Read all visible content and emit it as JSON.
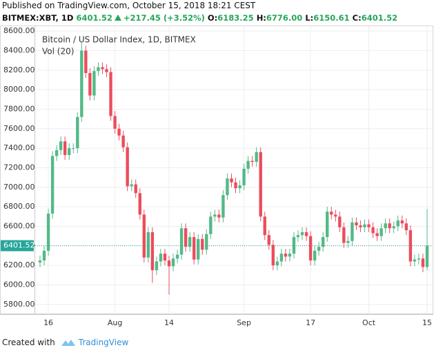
{
  "header": {
    "published": "Published on TradingView.com, October 15, 2018 18:21 CEST",
    "symbol": "BITMEX:XBT, 1D",
    "last": "6401.52",
    "change": "+217.45 (+3.52%)",
    "o_label": "O:",
    "o": "6183.25",
    "h_label": "H:",
    "h": "6776.00",
    "l_label": "L:",
    "l": "6150.61",
    "c_label": "C:",
    "c": "6401.52"
  },
  "footer": {
    "created": "Created with",
    "brand": "TradingView"
  },
  "chart_data": {
    "type": "candlestick",
    "title": "Bitcoin / US Dollar Index, 1D, BITMEX",
    "subtitle": "Vol (20)",
    "up_color": "#53b987",
    "down_color": "#eb4d5c",
    "grid": true,
    "categories": [
      "2018-07-14",
      "2018-07-15",
      "2018-07-16",
      "2018-07-17",
      "2018-07-18",
      "2018-07-19",
      "2018-07-20",
      "2018-07-21",
      "2018-07-22",
      "2018-07-23",
      "2018-07-24",
      "2018-07-25",
      "2018-07-26",
      "2018-07-27",
      "2018-07-28",
      "2018-07-29",
      "2018-07-30",
      "2018-07-31",
      "2018-08-01",
      "2018-08-02",
      "2018-08-03",
      "2018-08-04",
      "2018-08-05",
      "2018-08-06",
      "2018-08-07",
      "2018-08-08",
      "2018-08-09",
      "2018-08-10",
      "2018-08-11",
      "2018-08-12",
      "2018-08-13",
      "2018-08-14",
      "2018-08-15",
      "2018-08-16",
      "2018-08-17",
      "2018-08-18",
      "2018-08-19",
      "2018-08-20",
      "2018-08-21",
      "2018-08-22",
      "2018-08-23",
      "2018-08-24",
      "2018-08-25",
      "2018-08-26",
      "2018-08-27",
      "2018-08-28",
      "2018-08-29",
      "2018-08-30",
      "2018-08-31",
      "2018-09-01",
      "2018-09-02",
      "2018-09-03",
      "2018-09-04",
      "2018-09-05",
      "2018-09-06",
      "2018-09-07",
      "2018-09-08",
      "2018-09-09",
      "2018-09-10",
      "2018-09-11",
      "2018-09-12",
      "2018-09-13",
      "2018-09-14",
      "2018-09-15",
      "2018-09-16",
      "2018-09-17",
      "2018-09-18",
      "2018-09-19",
      "2018-09-20",
      "2018-09-21",
      "2018-09-22",
      "2018-09-23",
      "2018-09-24",
      "2018-09-25",
      "2018-09-26",
      "2018-09-27",
      "2018-09-28",
      "2018-09-29",
      "2018-09-30",
      "2018-10-01",
      "2018-10-02",
      "2018-10-03",
      "2018-10-04",
      "2018-10-05",
      "2018-10-06",
      "2018-10-07",
      "2018-10-08",
      "2018-10-09",
      "2018-10-10",
      "2018-10-11",
      "2018-10-12",
      "2018-10-13",
      "2018-10-14",
      "2018-10-15"
    ],
    "open": [
      6230,
      6250,
      6350,
      6730,
      7320,
      7380,
      7470,
      7330,
      7400,
      7400,
      7720,
      8400,
      8170,
      7940,
      8190,
      8230,
      8210,
      8180,
      7730,
      7600,
      7530,
      7410,
      7010,
      7030,
      6940,
      6720,
      6280,
      6540,
      6150,
      6240,
      6320,
      6250,
      6190,
      6270,
      6310,
      6580,
      6390,
      6490,
      6260,
      6470,
      6360,
      6520,
      6700,
      6720,
      6690,
      6920,
      7090,
      7050,
      6990,
      7020,
      7190,
      7270,
      7260,
      7360,
      6700,
      6510,
      6410,
      6200,
      6240,
      6320,
      6290,
      6320,
      6490,
      6510,
      6540,
      6500,
      6250,
      6350,
      6390,
      6490,
      6750,
      6720,
      6700,
      6590,
      6430,
      6450,
      6640,
      6610,
      6590,
      6620,
      6590,
      6530,
      6500,
      6580,
      6630,
      6580,
      6600,
      6660,
      6630,
      6560,
      6240,
      6260,
      6270,
      6183.25
    ],
    "high": [
      6300,
      6400,
      6780,
      7370,
      7430,
      7520,
      7520,
      7450,
      7450,
      7770,
      8480,
      8450,
      8220,
      8240,
      8280,
      8280,
      8260,
      8230,
      7780,
      7650,
      7580,
      7460,
      7080,
      7080,
      6990,
      6770,
      6590,
      6590,
      6290,
      6370,
      6370,
      6300,
      6320,
      6360,
      6630,
      6630,
      6540,
      6540,
      6520,
      6520,
      6570,
      6750,
      6770,
      6770,
      6970,
      7140,
      7140,
      7100,
      7070,
      7240,
      7320,
      7320,
      7410,
      7410,
      6750,
      6560,
      6460,
      6290,
      6370,
      6370,
      6370,
      6540,
      6560,
      6590,
      6590,
      6550,
      6400,
      6440,
      6540,
      6800,
      6800,
      6770,
      6750,
      6640,
      6500,
      6690,
      6690,
      6660,
      6670,
      6670,
      6640,
      6580,
      6630,
      6680,
      6680,
      6650,
      6710,
      6710,
      6680,
      6610,
      6310,
      6320,
      6320,
      6776
    ],
    "low": [
      6180,
      6200,
      6300,
      6680,
      7270,
      7330,
      7280,
      7280,
      7350,
      7350,
      7670,
      8120,
      7890,
      7890,
      8140,
      8160,
      8130,
      7680,
      7550,
      7480,
      7360,
      6960,
      6960,
      6890,
      6670,
      6230,
      6230,
      6020,
      6100,
      6190,
      6200,
      5900,
      6140,
      6220,
      6260,
      6340,
      6340,
      6210,
      6210,
      6310,
      6310,
      6470,
      6650,
      6640,
      6640,
      6870,
      7000,
      6940,
      6940,
      6970,
      7140,
      7210,
      7210,
      6650,
      6460,
      6360,
      6150,
      6150,
      6190,
      6240,
      6240,
      6270,
      6440,
      6460,
      6450,
      6200,
      6200,
      6300,
      6340,
      6440,
      6670,
      6650,
      6540,
      6380,
      6380,
      6400,
      6560,
      6540,
      6540,
      6540,
      6480,
      6450,
      6450,
      6530,
      6530,
      6530,
      6550,
      6580,
      6510,
      6190,
      6190,
      6210,
      6130,
      6150.61
    ],
    "close": [
      6250,
      6350,
      6730,
      7320,
      7380,
      7470,
      7330,
      7400,
      7400,
      7720,
      8400,
      8170,
      7940,
      8190,
      8230,
      8210,
      8180,
      7730,
      7600,
      7530,
      7410,
      7010,
      7030,
      6940,
      6720,
      6280,
      6540,
      6150,
      6240,
      6320,
      6250,
      6190,
      6270,
      6310,
      6580,
      6390,
      6490,
      6260,
      6470,
      6360,
      6520,
      6700,
      6720,
      6690,
      6920,
      7090,
      7050,
      6990,
      7020,
      7190,
      7270,
      7260,
      7360,
      6700,
      6510,
      6410,
      6200,
      6240,
      6320,
      6290,
      6320,
      6490,
      6510,
      6540,
      6500,
      6250,
      6350,
      6390,
      6490,
      6750,
      6720,
      6700,
      6590,
      6430,
      6450,
      6640,
      6610,
      6590,
      6620,
      6590,
      6530,
      6500,
      6580,
      6630,
      6580,
      6600,
      6660,
      6630,
      6560,
      6240,
      6260,
      6270,
      6183.25,
      6401.52
    ],
    "ylim": [
      5700,
      8650
    ],
    "yticks": [
      {
        "value": 5800,
        "label": "5800.00"
      },
      {
        "value": 6000,
        "label": "6000.00"
      },
      {
        "value": 6200,
        "label": "6200.00"
      },
      {
        "value": 6400,
        "label": "6400.00"
      },
      {
        "value": 6600,
        "label": "6600.00"
      },
      {
        "value": 6800,
        "label": "6800.00"
      },
      {
        "value": 7000,
        "label": "7000.00"
      },
      {
        "value": 7200,
        "label": "7200.00"
      },
      {
        "value": 7400,
        "label": "7400.00"
      },
      {
        "value": 7600,
        "label": "7600.00"
      },
      {
        "value": 7800,
        "label": "7800.00"
      },
      {
        "value": 8000,
        "label": "8000.00"
      },
      {
        "value": 8200,
        "label": "8200.00"
      },
      {
        "value": 8400,
        "label": "8400.00"
      },
      {
        "value": 8600,
        "label": "8600.00"
      }
    ],
    "xticks": [
      {
        "value": "2018-07-16",
        "label": "16"
      },
      {
        "value": "2018-08-01",
        "label": "Aug"
      },
      {
        "value": "2018-08-14",
        "label": "14"
      },
      {
        "value": "2018-09-01",
        "label": "Sep"
      },
      {
        "value": "2018-09-17",
        "label": "17"
      },
      {
        "value": "2018-10-01",
        "label": "Oct"
      },
      {
        "value": "2018-10-15",
        "label": "15"
      }
    ],
    "price_line": {
      "value": 6401.52,
      "label": "6401.52",
      "color": "#26a69a"
    }
  }
}
